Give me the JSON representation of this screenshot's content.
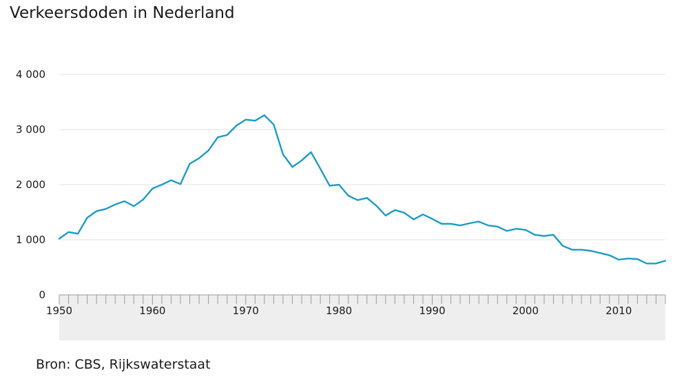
{
  "chart_data": {
    "type": "line",
    "title": "Verkeersdoden in Nederland",
    "source": "Bron: CBS, Rijkswaterstaat",
    "xlabel": "",
    "ylabel": "",
    "xlim": [
      1950,
      2015
    ],
    "ylim": [
      0,
      4000
    ],
    "y_ticks": [
      {
        "value": 0,
        "label": "0"
      },
      {
        "value": 1000,
        "label": "1 000"
      },
      {
        "value": 2000,
        "label": "2 000"
      },
      {
        "value": 3000,
        "label": "3 000"
      },
      {
        "value": 4000,
        "label": "4 000"
      }
    ],
    "x_ticks": [
      {
        "value": 1950,
        "label": "1950"
      },
      {
        "value": 1960,
        "label": "1960"
      },
      {
        "value": 1970,
        "label": "1970"
      },
      {
        "value": 1980,
        "label": "1980"
      },
      {
        "value": 1990,
        "label": "1990"
      },
      {
        "value": 2000,
        "label": "2000"
      },
      {
        "value": 2010,
        "label": "2010"
      }
    ],
    "grid": true,
    "colors": {
      "line": "#1a9bc7",
      "grid": "#e2e2e2",
      "axis_band": "#eeeeee",
      "axis": "#999999"
    },
    "series": [
      {
        "x": [
          1950,
          1951,
          1952,
          1953,
          1954,
          1955,
          1956,
          1957,
          1958,
          1959,
          1960,
          1961,
          1962,
          1963,
          1964,
          1965,
          1966,
          1967,
          1968,
          1969,
          1970,
          1971,
          1972,
          1973,
          1974,
          1975,
          1976,
          1977,
          1978,
          1979,
          1980,
          1981,
          1982,
          1983,
          1984,
          1985,
          1986,
          1987,
          1988,
          1989,
          1990,
          1991,
          1992,
          1993,
          1994,
          1995,
          1996,
          1997,
          1998,
          1999,
          2000,
          2001,
          2002,
          2003,
          2004,
          2005,
          2006,
          2007,
          2008,
          2009,
          2010,
          2011,
          2012,
          2013,
          2014,
          2015
        ],
        "values": [
          1020,
          1140,
          1110,
          1400,
          1520,
          1560,
          1640,
          1700,
          1610,
          1730,
          1930,
          2000,
          2080,
          2010,
          2380,
          2480,
          2620,
          2860,
          2900,
          3070,
          3180,
          3160,
          3260,
          3090,
          2550,
          2320,
          2440,
          2590,
          2290,
          1980,
          2000,
          1800,
          1720,
          1760,
          1620,
          1440,
          1540,
          1490,
          1370,
          1460,
          1380,
          1290,
          1290,
          1260,
          1300,
          1330,
          1260,
          1240,
          1160,
          1200,
          1180,
          1090,
          1070,
          1090,
          890,
          820,
          820,
          800,
          760,
          720,
          640,
          660,
          650,
          570,
          570,
          620
        ]
      }
    ]
  }
}
